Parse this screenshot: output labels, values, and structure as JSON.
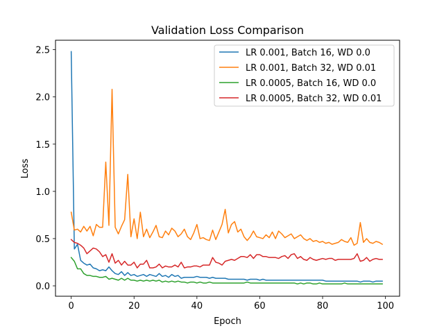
{
  "chart_data": {
    "type": "line",
    "title": "Validation Loss Comparison",
    "xlabel": "Epoch",
    "ylabel": "Loss",
    "xlim": [
      -5,
      104.5
    ],
    "ylim": [
      -0.11,
      2.6
    ],
    "xticks": [
      0,
      20,
      40,
      60,
      80,
      100
    ],
    "yticks": [
      0.0,
      0.5,
      1.0,
      1.5,
      2.0,
      2.5
    ],
    "xtick_labels": [
      "0",
      "20",
      "40",
      "60",
      "80",
      "100"
    ],
    "ytick_labels": [
      "0.0",
      "0.5",
      "1.0",
      "1.5",
      "2.0",
      "2.5"
    ],
    "grid": false,
    "legend_position": "top-right",
    "x": [
      0,
      1,
      2,
      3,
      4,
      5,
      6,
      7,
      8,
      9,
      10,
      11,
      12,
      13,
      14,
      15,
      16,
      17,
      18,
      19,
      20,
      21,
      22,
      23,
      24,
      25,
      26,
      27,
      28,
      29,
      30,
      31,
      32,
      33,
      34,
      35,
      36,
      37,
      38,
      39,
      40,
      41,
      42,
      43,
      44,
      45,
      46,
      47,
      48,
      49,
      50,
      51,
      52,
      53,
      54,
      55,
      56,
      57,
      58,
      59,
      60,
      61,
      62,
      63,
      64,
      65,
      66,
      67,
      68,
      69,
      70,
      71,
      72,
      73,
      74,
      75,
      76,
      77,
      78,
      79,
      80,
      81,
      82,
      83,
      84,
      85,
      86,
      87,
      88,
      89,
      90,
      91,
      92,
      93,
      94,
      95,
      96,
      97,
      98,
      99
    ],
    "series": [
      {
        "name": "LR 0.001, Batch 16, WD 0.0",
        "color": "#1f77b4",
        "values": [
          2.48,
          0.39,
          0.44,
          0.27,
          0.24,
          0.22,
          0.23,
          0.19,
          0.18,
          0.16,
          0.17,
          0.16,
          0.2,
          0.16,
          0.13,
          0.12,
          0.15,
          0.11,
          0.14,
          0.11,
          0.12,
          0.1,
          0.11,
          0.12,
          0.1,
          0.12,
          0.11,
          0.1,
          0.13,
          0.1,
          0.11,
          0.09,
          0.12,
          0.1,
          0.11,
          0.08,
          0.09,
          0.09,
          0.09,
          0.09,
          0.1,
          0.09,
          0.09,
          0.09,
          0.08,
          0.09,
          0.08,
          0.08,
          0.08,
          0.08,
          0.07,
          0.07,
          0.07,
          0.07,
          0.07,
          0.07,
          0.06,
          0.07,
          0.07,
          0.07,
          0.06,
          0.07,
          0.06,
          0.06,
          0.06,
          0.06,
          0.06,
          0.06,
          0.06,
          0.06,
          0.06,
          0.06,
          0.06,
          0.06,
          0.06,
          0.06,
          0.06,
          0.06,
          0.06,
          0.06,
          0.06,
          0.05,
          0.05,
          0.05,
          0.05,
          0.05,
          0.05,
          0.05,
          0.05,
          0.05,
          0.05,
          0.05,
          0.04,
          0.05,
          0.05,
          0.05,
          0.04,
          0.05,
          0.05,
          0.05
        ]
      },
      {
        "name": "LR 0.001, Batch 32, WD 0.01",
        "color": "#ff7f0e",
        "values": [
          0.78,
          0.59,
          0.6,
          0.57,
          0.63,
          0.58,
          0.63,
          0.53,
          0.65,
          0.62,
          0.62,
          1.31,
          0.64,
          2.08,
          0.62,
          0.55,
          0.63,
          0.7,
          1.18,
          0.52,
          0.71,
          0.5,
          0.78,
          0.52,
          0.6,
          0.51,
          0.57,
          0.64,
          0.52,
          0.51,
          0.58,
          0.54,
          0.61,
          0.58,
          0.52,
          0.55,
          0.6,
          0.52,
          0.49,
          0.56,
          0.65,
          0.5,
          0.51,
          0.49,
          0.48,
          0.59,
          0.49,
          0.57,
          0.65,
          0.81,
          0.56,
          0.65,
          0.68,
          0.57,
          0.6,
          0.52,
          0.48,
          0.52,
          0.58,
          0.52,
          0.51,
          0.5,
          0.54,
          0.51,
          0.57,
          0.5,
          0.58,
          0.55,
          0.51,
          0.53,
          0.55,
          0.5,
          0.52,
          0.54,
          0.5,
          0.48,
          0.5,
          0.47,
          0.48,
          0.46,
          0.47,
          0.45,
          0.46,
          0.44,
          0.45,
          0.46,
          0.49,
          0.47,
          0.46,
          0.51,
          0.43,
          0.45,
          0.67,
          0.46,
          0.5,
          0.46,
          0.45,
          0.47,
          0.46,
          0.44
        ]
      },
      {
        "name": "LR 0.0005, Batch 16, WD 0.0",
        "color": "#2ca02c",
        "values": [
          0.3,
          0.26,
          0.18,
          0.18,
          0.13,
          0.11,
          0.11,
          0.1,
          0.1,
          0.09,
          0.09,
          0.1,
          0.07,
          0.08,
          0.07,
          0.06,
          0.08,
          0.06,
          0.08,
          0.06,
          0.06,
          0.05,
          0.06,
          0.05,
          0.06,
          0.05,
          0.06,
          0.05,
          0.06,
          0.04,
          0.05,
          0.04,
          0.05,
          0.04,
          0.05,
          0.04,
          0.04,
          0.03,
          0.04,
          0.04,
          0.03,
          0.04,
          0.03,
          0.03,
          0.04,
          0.03,
          0.03,
          0.03,
          0.03,
          0.03,
          0.03,
          0.03,
          0.03,
          0.03,
          0.03,
          0.03,
          0.04,
          0.03,
          0.03,
          0.03,
          0.03,
          0.03,
          0.03,
          0.03,
          0.03,
          0.03,
          0.03,
          0.03,
          0.03,
          0.03,
          0.03,
          0.03,
          0.02,
          0.03,
          0.02,
          0.03,
          0.03,
          0.02,
          0.02,
          0.03,
          0.02,
          0.02,
          0.02,
          0.02,
          0.02,
          0.02,
          0.02,
          0.03,
          0.02,
          0.02,
          0.02,
          0.02,
          0.02,
          0.02,
          0.02,
          0.02,
          0.02,
          0.02,
          0.02,
          0.02
        ]
      },
      {
        "name": "LR 0.0005, Batch 32, WD 0.01",
        "color": "#d62728",
        "values": [
          0.49,
          0.46,
          0.45,
          0.43,
          0.4,
          0.34,
          0.37,
          0.4,
          0.39,
          0.36,
          0.31,
          0.33,
          0.25,
          0.34,
          0.24,
          0.27,
          0.22,
          0.26,
          0.22,
          0.22,
          0.25,
          0.19,
          0.23,
          0.23,
          0.27,
          0.19,
          0.19,
          0.2,
          0.23,
          0.19,
          0.21,
          0.2,
          0.2,
          0.22,
          0.2,
          0.25,
          0.19,
          0.2,
          0.2,
          0.21,
          0.21,
          0.2,
          0.22,
          0.22,
          0.22,
          0.3,
          0.25,
          0.24,
          0.22,
          0.26,
          0.27,
          0.28,
          0.27,
          0.29,
          0.31,
          0.31,
          0.3,
          0.33,
          0.29,
          0.33,
          0.33,
          0.31,
          0.31,
          0.3,
          0.3,
          0.3,
          0.29,
          0.31,
          0.32,
          0.29,
          0.33,
          0.34,
          0.29,
          0.31,
          0.28,
          0.27,
          0.3,
          0.28,
          0.27,
          0.28,
          0.29,
          0.28,
          0.29,
          0.29,
          0.27,
          0.28,
          0.28,
          0.28,
          0.28,
          0.28,
          0.29,
          0.34,
          0.26,
          0.27,
          0.3,
          0.26,
          0.28,
          0.29,
          0.28,
          0.28
        ]
      }
    ]
  }
}
